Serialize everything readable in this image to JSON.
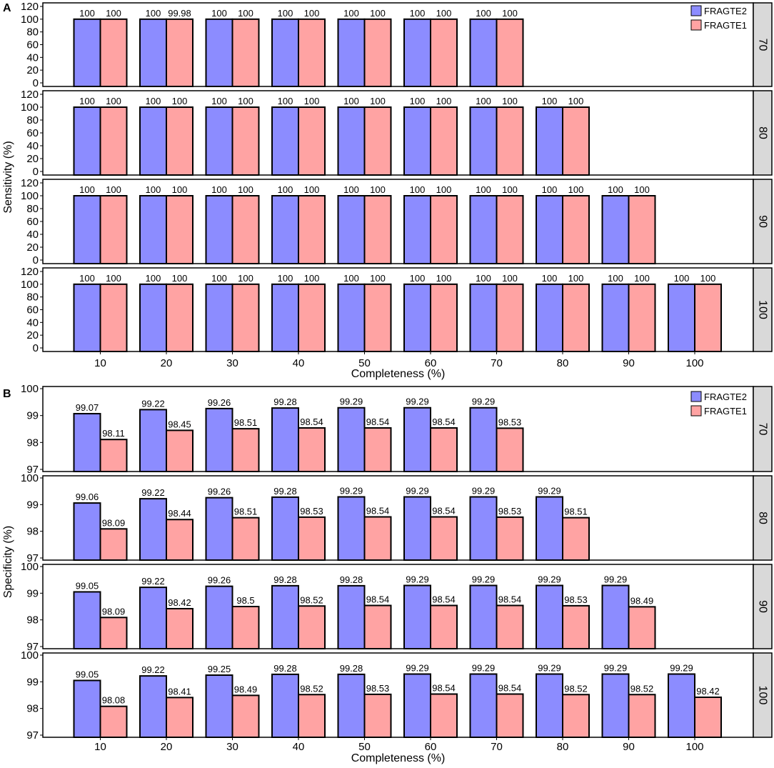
{
  "colors": {
    "FRAGTE2": "#8c8cff",
    "FRAGTE1": "#ffa3a3",
    "strip_bg": "#d9d9d9"
  },
  "chart_data": [
    {
      "type": "bar",
      "panel_label": "A",
      "ylabel": "Sensitivity (%)",
      "xlabel": "Completeness (%)",
      "ylim": [
        0,
        120
      ],
      "yticks": [
        0,
        20,
        40,
        60,
        80,
        100,
        120
      ],
      "categories": [
        "10",
        "20",
        "30",
        "40",
        "50",
        "60",
        "70",
        "80",
        "90",
        "100"
      ],
      "legend": [
        "FRAGTE2",
        "FRAGTE1"
      ],
      "facets": [
        {
          "strip": "70",
          "series": [
            {
              "name": "FRAGTE2",
              "values": [
                100,
                100,
                100,
                100,
                100,
                100,
                100
              ]
            },
            {
              "name": "FRAGTE1",
              "values": [
                100,
                99.98,
                100,
                100,
                100,
                100,
                100
              ]
            }
          ]
        },
        {
          "strip": "80",
          "series": [
            {
              "name": "FRAGTE2",
              "values": [
                100,
                100,
                100,
                100,
                100,
                100,
                100,
                100
              ]
            },
            {
              "name": "FRAGTE1",
              "values": [
                100,
                100,
                100,
                100,
                100,
                100,
                100,
                100
              ]
            }
          ]
        },
        {
          "strip": "90",
          "series": [
            {
              "name": "FRAGTE2",
              "values": [
                100,
                100,
                100,
                100,
                100,
                100,
                100,
                100,
                100
              ]
            },
            {
              "name": "FRAGTE1",
              "values": [
                100,
                100,
                100,
                100,
                100,
                100,
                100,
                100,
                100
              ]
            }
          ]
        },
        {
          "strip": "100",
          "series": [
            {
              "name": "FRAGTE2",
              "values": [
                100,
                100,
                100,
                100,
                100,
                100,
                100,
                100,
                100,
                100
              ]
            },
            {
              "name": "FRAGTE1",
              "values": [
                100,
                100,
                100,
                100,
                100,
                100,
                100,
                100,
                100,
                100
              ]
            }
          ]
        }
      ]
    },
    {
      "type": "bar",
      "panel_label": "B",
      "ylabel": "Specificity (%)",
      "xlabel": "Completeness (%)",
      "ylim": [
        97,
        100
      ],
      "yticks": [
        97,
        98,
        99,
        100
      ],
      "categories": [
        "10",
        "20",
        "30",
        "40",
        "50",
        "60",
        "70",
        "80",
        "90",
        "100"
      ],
      "legend": [
        "FRAGTE2",
        "FRAGTE1"
      ],
      "facets": [
        {
          "strip": "70",
          "series": [
            {
              "name": "FRAGTE2",
              "values": [
                99.07,
                99.22,
                99.26,
                99.28,
                99.29,
                99.29,
                99.29
              ]
            },
            {
              "name": "FRAGTE1",
              "values": [
                98.11,
                98.45,
                98.51,
                98.54,
                98.54,
                98.54,
                98.53
              ]
            }
          ]
        },
        {
          "strip": "80",
          "series": [
            {
              "name": "FRAGTE2",
              "values": [
                99.06,
                99.22,
                99.26,
                99.28,
                99.29,
                99.29,
                99.29,
                99.29
              ]
            },
            {
              "name": "FRAGTE1",
              "values": [
                98.09,
                98.44,
                98.51,
                98.53,
                98.54,
                98.54,
                98.53,
                98.51
              ]
            }
          ]
        },
        {
          "strip": "90",
          "series": [
            {
              "name": "FRAGTE2",
              "values": [
                99.05,
                99.22,
                99.26,
                99.28,
                99.28,
                99.29,
                99.29,
                99.29,
                99.29
              ]
            },
            {
              "name": "FRAGTE1",
              "values": [
                98.09,
                98.42,
                98.5,
                98.52,
                98.54,
                98.54,
                98.54,
                98.53,
                98.49
              ]
            }
          ]
        },
        {
          "strip": "100",
          "series": [
            {
              "name": "FRAGTE2",
              "values": [
                99.05,
                99.22,
                99.25,
                99.28,
                99.28,
                99.29,
                99.29,
                99.29,
                99.29,
                99.29
              ]
            },
            {
              "name": "FRAGTE1",
              "values": [
                98.08,
                98.41,
                98.49,
                98.52,
                98.53,
                98.54,
                98.54,
                98.52,
                98.52,
                98.42
              ]
            }
          ]
        }
      ]
    }
  ]
}
